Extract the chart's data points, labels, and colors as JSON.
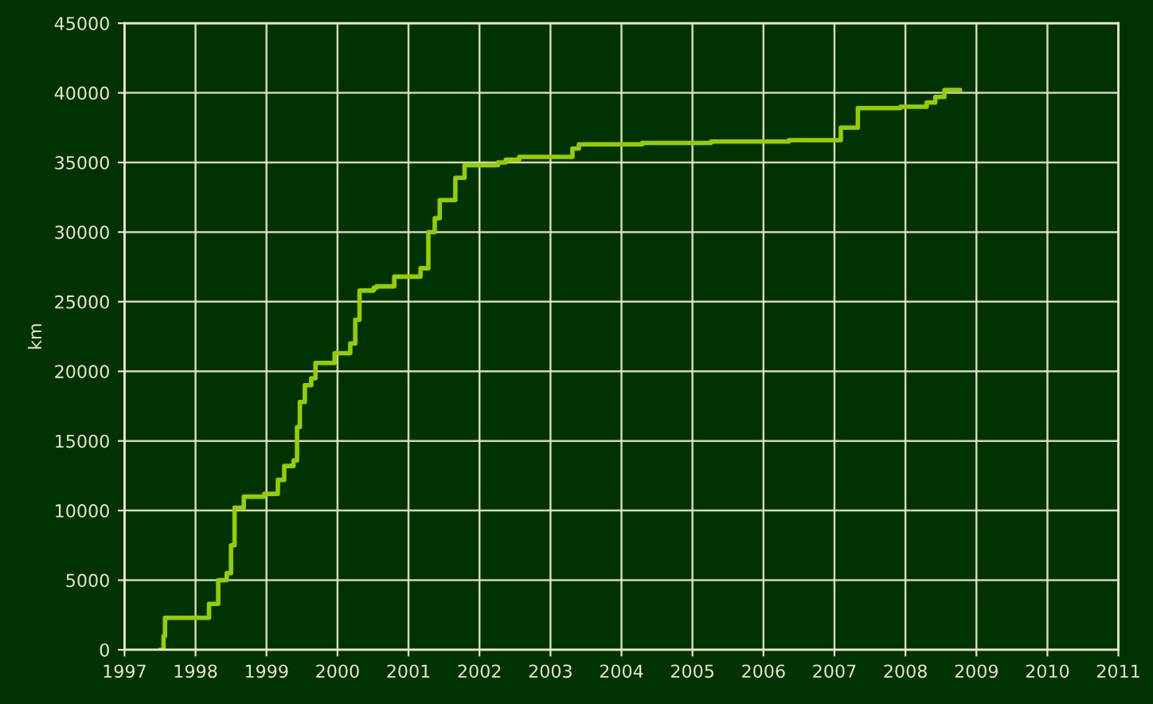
{
  "chart_data": {
    "type": "step",
    "ylabel": "km",
    "x": [
      1997.5,
      1997.55,
      1997.57,
      1998.19,
      1998.32,
      1998.44,
      1998.5,
      1998.55,
      1998.68,
      1998.97,
      1999.16,
      1999.25,
      1999.38,
      1999.43,
      1999.47,
      1999.54,
      1999.63,
      1999.69,
      1999.96,
      2000.18,
      2000.25,
      2000.31,
      2000.51,
      2000.55,
      2000.8,
      2001.17,
      2001.28,
      2001.37,
      2001.44,
      2001.66,
      2001.79,
      2002.26,
      2002.37,
      2002.56,
      2003.31,
      2003.4,
      2004.29,
      2005.26,
      2006.36,
      2007.09,
      2007.33,
      2007.93,
      2008.3,
      2008.42,
      2008.55,
      2008.77
    ],
    "series": [
      {
        "color": "#99cc00",
        "values": [
          0,
          1000,
          2300,
          3300,
          5000,
          5500,
          7500,
          10200,
          11000,
          11200,
          12200,
          13200,
          13600,
          16000,
          17800,
          19000,
          19500,
          20600,
          21300,
          22000,
          23700,
          25800,
          26000,
          26100,
          26800,
          27400,
          30000,
          31000,
          32300,
          33900,
          34800,
          35000,
          35200,
          35400,
          36000,
          36300,
          36400,
          36500,
          36600,
          37500,
          38900,
          39000,
          39300,
          39700,
          40200,
          40200
        ]
      }
    ],
    "xlim": [
      1997,
      2011
    ],
    "xticks": [
      1997,
      1998,
      1999,
      2000,
      2001,
      2002,
      2003,
      2004,
      2005,
      2006,
      2007,
      2008,
      2009,
      2010,
      2011
    ],
    "ylim": [
      0,
      45000
    ],
    "yticks": [
      0,
      5000,
      10000,
      15000,
      20000,
      25000,
      30000,
      35000,
      40000,
      45000
    ],
    "grid": true
  }
}
